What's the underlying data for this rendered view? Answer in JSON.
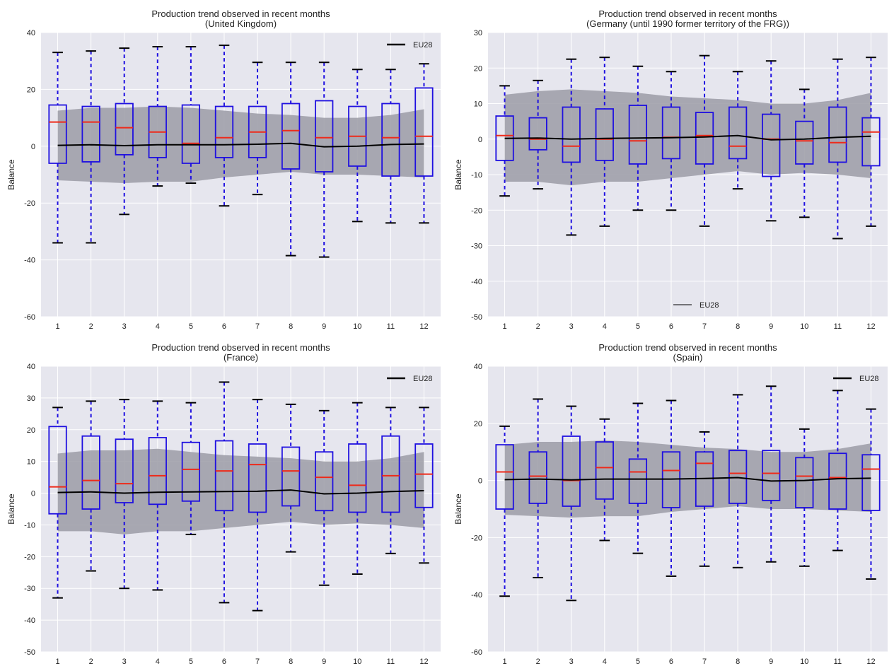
{
  "chart_data": [
    {
      "type": "box",
      "title": "Production trend observed in recent months",
      "subtitle": "(United Kingdom)",
      "ylabel": "Balance",
      "xlabel": "",
      "ylim": [
        -60,
        40
      ],
      "yticks": [
        -60,
        -40,
        -20,
        0,
        20,
        40
      ],
      "categories": [
        "1",
        "2",
        "3",
        "4",
        "5",
        "6",
        "7",
        "8",
        "9",
        "10",
        "11",
        "12"
      ],
      "legend": {
        "label": "EU28",
        "position": "top-right"
      },
      "grid": true,
      "boxes": [
        {
          "whislo": -34,
          "q1": -6,
          "med": 8.5,
          "q3": 14.5,
          "whishi": 33
        },
        {
          "whislo": -34,
          "q1": -5.5,
          "med": 8.5,
          "q3": 14,
          "whishi": 33.5
        },
        {
          "whislo": -24,
          "q1": -3,
          "med": 6.5,
          "q3": 15,
          "whishi": 34.5
        },
        {
          "whislo": -14,
          "q1": -4,
          "med": 5,
          "q3": 14,
          "whishi": 35
        },
        {
          "whislo": -13,
          "q1": -6,
          "med": 1,
          "q3": 14.5,
          "whishi": 35
        },
        {
          "whislo": -21,
          "q1": -4,
          "med": 3,
          "q3": 14,
          "whishi": 35.5
        },
        {
          "whislo": -17,
          "q1": -4,
          "med": 5,
          "q3": 14,
          "whishi": 29.5
        },
        {
          "whislo": -38.5,
          "q1": -8,
          "med": 5.5,
          "q3": 15,
          "whishi": 29.5
        },
        {
          "whislo": -39,
          "q1": -9,
          "med": 3,
          "q3": 16,
          "whishi": 29.5
        },
        {
          "whislo": -26.5,
          "q1": -7,
          "med": 3.5,
          "q3": 14,
          "whishi": 27
        },
        {
          "whislo": -27,
          "q1": -10.5,
          "med": 3,
          "q3": 15,
          "whishi": 27
        },
        {
          "whislo": -27,
          "q1": -10.5,
          "med": 3.5,
          "q3": 20.5,
          "whishi": 29
        }
      ],
      "series": [
        {
          "name": "EU28",
          "values": [
            0.3,
            0.5,
            0.2,
            0.5,
            0.5,
            0.5,
            0.7,
            1.0,
            -0.2,
            0.0,
            0.6,
            0.8
          ],
          "band_lower": [
            -12,
            -12.5,
            -13,
            -12.5,
            -12.5,
            -11,
            -10,
            -9,
            -10,
            -10,
            -10.5,
            -11
          ],
          "band_upper": [
            12.5,
            13.5,
            13.5,
            14,
            13.5,
            12.5,
            11.5,
            11,
            10,
            10,
            11,
            13
          ]
        }
      ]
    },
    {
      "type": "box",
      "title": "Production trend observed in recent months",
      "subtitle": "(Germany (until 1990 former territory of the FRG))",
      "ylabel": "Balance",
      "xlabel": "",
      "ylim": [
        -50,
        30
      ],
      "yticks": [
        -50,
        -40,
        -30,
        -20,
        -10,
        0,
        10,
        20,
        30
      ],
      "categories": [
        "1",
        "2",
        "3",
        "4",
        "5",
        "6",
        "7",
        "8",
        "9",
        "10",
        "11",
        "12"
      ],
      "legend": {
        "label": "EU28",
        "position": "bottom-center"
      },
      "grid": true,
      "boxes": [
        {
          "whislo": -16,
          "q1": -6,
          "med": 1,
          "q3": 6.5,
          "whishi": 15
        },
        {
          "whislo": -14,
          "q1": -3,
          "med": 0,
          "q3": 6,
          "whishi": 16.5
        },
        {
          "whislo": -27,
          "q1": -6.5,
          "med": -2,
          "q3": 9,
          "whishi": 22.5
        },
        {
          "whislo": -24.5,
          "q1": -6,
          "med": 0,
          "q3": 8.5,
          "whishi": 23
        },
        {
          "whislo": -20,
          "q1": -7,
          "med": -0.5,
          "q3": 9.5,
          "whishi": 20.5
        },
        {
          "whislo": -20,
          "q1": -5.5,
          "med": 0.5,
          "q3": 9,
          "whishi": 19
        },
        {
          "whislo": -24.5,
          "q1": -7,
          "med": 1,
          "q3": 7.5,
          "whishi": 23.5
        },
        {
          "whislo": -14,
          "q1": -5.5,
          "med": -2,
          "q3": 9,
          "whishi": 19
        },
        {
          "whislo": -23,
          "q1": -10.5,
          "med": 0,
          "q3": 7,
          "whishi": 22
        },
        {
          "whislo": -22,
          "q1": -7,
          "med": -0.5,
          "q3": 5,
          "whishi": 14
        },
        {
          "whislo": -28,
          "q1": -6.5,
          "med": -1,
          "q3": 9,
          "whishi": 22.5
        },
        {
          "whislo": -24.5,
          "q1": -7.5,
          "med": 2,
          "q3": 6,
          "whishi": 23
        }
      ],
      "series": [
        {
          "name": "EU28",
          "values": [
            0.2,
            0.3,
            0.0,
            0.2,
            0.3,
            0.4,
            0.6,
            1.0,
            -0.2,
            0.0,
            0.5,
            0.8
          ],
          "band_lower": [
            -12,
            -12,
            -13,
            -12,
            -12,
            -11,
            -10,
            -9,
            -10,
            -9.5,
            -10,
            -11
          ],
          "band_upper": [
            12.5,
            13.5,
            14,
            13.5,
            13,
            12,
            11.5,
            11,
            10,
            10,
            11,
            13
          ]
        }
      ]
    },
    {
      "type": "box",
      "title": "Production trend observed in recent months",
      "subtitle": "(France)",
      "ylabel": "Balance",
      "xlabel": "",
      "ylim": [
        -50,
        40
      ],
      "yticks": [
        -50,
        -40,
        -30,
        -20,
        -10,
        0,
        10,
        20,
        30,
        40
      ],
      "categories": [
        "1",
        "2",
        "3",
        "4",
        "5",
        "6",
        "7",
        "8",
        "9",
        "10",
        "11",
        "12"
      ],
      "legend": {
        "label": "EU28",
        "position": "top-right"
      },
      "grid": true,
      "boxes": [
        {
          "whislo": -33,
          "q1": -6.5,
          "med": 2,
          "q3": 21,
          "whishi": 27
        },
        {
          "whislo": -24.5,
          "q1": -5,
          "med": 4,
          "q3": 18,
          "whishi": 29
        },
        {
          "whislo": -30,
          "q1": -3,
          "med": 3,
          "q3": 17,
          "whishi": 29.5
        },
        {
          "whislo": -30.5,
          "q1": -3.5,
          "med": 5.5,
          "q3": 17.5,
          "whishi": 29
        },
        {
          "whislo": -13,
          "q1": -2.5,
          "med": 7.5,
          "q3": 16,
          "whishi": 28.5
        },
        {
          "whislo": -34.5,
          "q1": -5.5,
          "med": 7,
          "q3": 16.5,
          "whishi": 35
        },
        {
          "whislo": -37,
          "q1": -6,
          "med": 9,
          "q3": 15.5,
          "whishi": 29.5
        },
        {
          "whislo": -18.5,
          "q1": -4,
          "med": 7,
          "q3": 14.5,
          "whishi": 28
        },
        {
          "whislo": -29,
          "q1": -5.5,
          "med": 5,
          "q3": 13,
          "whishi": 26
        },
        {
          "whislo": -25.5,
          "q1": -6,
          "med": 2.5,
          "q3": 15.5,
          "whishi": 28.5
        },
        {
          "whislo": -19,
          "q1": -6,
          "med": 5.5,
          "q3": 18,
          "whishi": 27
        },
        {
          "whislo": -22,
          "q1": -4.5,
          "med": 6,
          "q3": 15.5,
          "whishi": 27
        }
      ],
      "series": [
        {
          "name": "EU28",
          "values": [
            0.2,
            0.4,
            0.0,
            0.3,
            0.4,
            0.5,
            0.6,
            1.0,
            -0.2,
            0.0,
            0.5,
            0.8
          ],
          "band_lower": [
            -12,
            -12,
            -13,
            -12,
            -12,
            -11,
            -10,
            -9,
            -10,
            -9.5,
            -10,
            -11
          ],
          "band_upper": [
            12.5,
            13.5,
            13.5,
            14,
            13,
            12,
            11.5,
            11,
            10,
            10,
            11,
            13
          ]
        }
      ]
    },
    {
      "type": "box",
      "title": "Production trend observed in recent months",
      "subtitle": "(Spain)",
      "ylabel": "Balance",
      "xlabel": "",
      "ylim": [
        -60,
        40
      ],
      "yticks": [
        -60,
        -40,
        -20,
        0,
        20,
        40
      ],
      "categories": [
        "1",
        "2",
        "3",
        "4",
        "5",
        "6",
        "7",
        "8",
        "9",
        "10",
        "11",
        "12"
      ],
      "legend": {
        "label": "EU28",
        "position": "top-right"
      },
      "grid": true,
      "boxes": [
        {
          "whislo": -40.5,
          "q1": -10,
          "med": 3,
          "q3": 12.5,
          "whishi": 19
        },
        {
          "whislo": -34,
          "q1": -8,
          "med": 1.5,
          "q3": 10,
          "whishi": 28.5
        },
        {
          "whislo": -42,
          "q1": -9,
          "med": 0,
          "q3": 15.5,
          "whishi": 26
        },
        {
          "whislo": -21,
          "q1": -6.5,
          "med": 4.5,
          "q3": 13.5,
          "whishi": 21.5
        },
        {
          "whislo": -25.5,
          "q1": -8,
          "med": 3,
          "q3": 7.5,
          "whishi": 27
        },
        {
          "whislo": -33.5,
          "q1": -9.5,
          "med": 3.5,
          "q3": 10,
          "whishi": 28
        },
        {
          "whislo": -30,
          "q1": -9,
          "med": 6,
          "q3": 10,
          "whishi": 17
        },
        {
          "whislo": -30.5,
          "q1": -8,
          "med": 2.5,
          "q3": 10.5,
          "whishi": 30
        },
        {
          "whislo": -28.5,
          "q1": -7,
          "med": 2.5,
          "q3": 10.5,
          "whishi": 33
        },
        {
          "whislo": -30,
          "q1": -9.5,
          "med": 1.5,
          "q3": 8,
          "whishi": 18
        },
        {
          "whislo": -24.5,
          "q1": -10,
          "med": 1,
          "q3": 9.5,
          "whishi": 31.5
        },
        {
          "whislo": -34.5,
          "q1": -10.5,
          "med": 4,
          "q3": 9,
          "whishi": 25
        }
      ],
      "series": [
        {
          "name": "EU28",
          "values": [
            0.3,
            0.5,
            0.2,
            0.5,
            0.5,
            0.5,
            0.7,
            1.0,
            -0.2,
            0.0,
            0.6,
            0.8
          ],
          "band_lower": [
            -12,
            -12.5,
            -13,
            -12.5,
            -12.5,
            -11,
            -10,
            -9,
            -10,
            -10,
            -10.5,
            -11
          ],
          "band_upper": [
            12.5,
            13.5,
            13.5,
            14,
            13.5,
            12.5,
            11.5,
            11,
            10,
            10,
            11,
            13
          ]
        }
      ]
    }
  ],
  "colors": {
    "axes_bg": "#e6e6ee",
    "grid": "#ffffff",
    "box": "#1f10e0",
    "median": "#ee2a1a",
    "whisker_cap": "#000000",
    "band": "#9b9ba6",
    "eu_line": "#000000"
  }
}
